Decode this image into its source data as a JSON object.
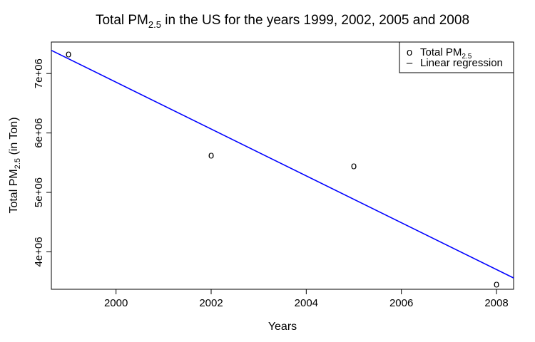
{
  "chart_data": {
    "type": "scatter",
    "title": {
      "prefix": "Total PM",
      "subscript": "2.5",
      "suffix": " in the US for the years 1999, 2002, 2005 and 2008"
    },
    "xlabel": "Years",
    "ylabel": {
      "prefix": "Total PM",
      "subscript": "2.5",
      "suffix": " (in Ton)"
    },
    "xlim": [
      1998.64,
      2008.36
    ],
    "ylim": [
      3370000,
      7530000
    ],
    "x_ticks": [
      {
        "value": 2000,
        "label": "2000"
      },
      {
        "value": 2002,
        "label": "2002"
      },
      {
        "value": 2004,
        "label": "2004"
      },
      {
        "value": 2006,
        "label": "2006"
      },
      {
        "value": 2008,
        "label": "2008"
      }
    ],
    "y_ticks": [
      {
        "value": 4000000,
        "label": "4e+06"
      },
      {
        "value": 5000000,
        "label": "5e+06"
      },
      {
        "value": 6000000,
        "label": "6e+06"
      },
      {
        "value": 7000000,
        "label": "7e+06"
      }
    ],
    "series": [
      {
        "type": "scatter",
        "marker": "o",
        "color": "#ff0000",
        "x": [
          1999,
          2002,
          2005,
          2008
        ],
        "y": [
          7330000,
          5630000,
          5450000,
          3460000
        ]
      },
      {
        "type": "line",
        "color": "#0000ff",
        "intercept_at_x0": 7390000,
        "x0": 1998.64,
        "slope": -394000
      }
    ],
    "legend": {
      "position": "top-right",
      "entries": [
        {
          "symbol": "o",
          "color": "#ff0000",
          "prefix": "Total PM",
          "subscript": "2.5"
        },
        {
          "symbol": "–",
          "color": "#0000ff",
          "prefix": "Linear regression",
          "subscript": ""
        }
      ]
    },
    "grid": false
  }
}
